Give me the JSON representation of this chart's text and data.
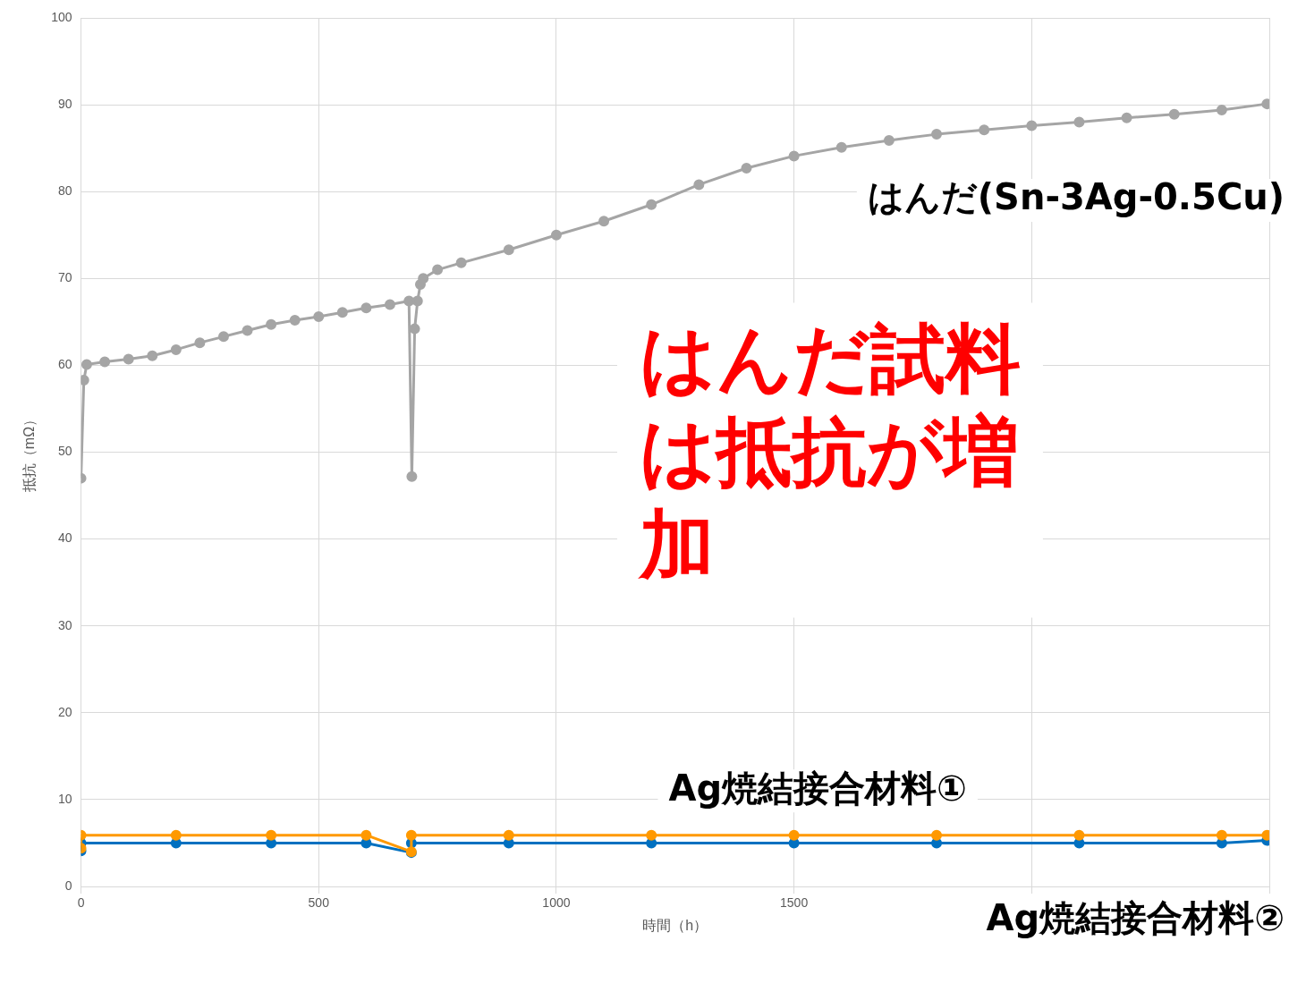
{
  "chart_data": {
    "type": "line",
    "xlabel": "時間（h）",
    "ylabel": "抵抗（mΩ）",
    "xlim": [
      0,
      2500
    ],
    "xticks": [
      0,
      500,
      1000,
      1500,
      {
        "value": 2000,
        "label": null
      },
      {
        "value": 2500,
        "label": null
      }
    ],
    "ylim": [
      0,
      100
    ],
    "yticks": [
      0,
      10,
      20,
      30,
      40,
      50,
      60,
      70,
      80,
      90,
      100
    ],
    "grid": true,
    "legend": false,
    "marker": "circle",
    "line_style": "solid",
    "annotations": [
      "はんだ試料は抵抗が増加"
    ],
    "series": [
      {
        "name": "はんだ(Sn-3Ag-0.5Cu)",
        "color": "#a5a5a5",
        "x": [
          0,
          6,
          12,
          50,
          100,
          150,
          200,
          250,
          300,
          350,
          400,
          450,
          500,
          550,
          600,
          650,
          690,
          696,
          702,
          708,
          714,
          720,
          750,
          800,
          900,
          1000,
          1100,
          1200,
          1300,
          1400,
          1500,
          1600,
          1700,
          1800,
          1900,
          2000,
          2100,
          2200,
          2300,
          2400,
          2495
        ],
        "values": [
          47,
          58.3,
          60.1,
          60.4,
          60.7,
          61.1,
          61.8,
          62.6,
          63.3,
          64,
          64.7,
          65.2,
          65.6,
          66.1,
          66.6,
          67,
          67.4,
          47.2,
          64.2,
          67.4,
          69.3,
          70,
          71,
          71.8,
          73.3,
          75,
          76.6,
          78.5,
          80.8,
          82.7,
          84.1,
          85.1,
          85.9,
          86.6,
          87.1,
          87.6,
          88,
          88.5,
          88.9,
          89.4,
          90.1
        ]
      },
      {
        "name": "Ag焼結接合材料①",
        "color": "#ff9900",
        "x": [
          0,
          0,
          200,
          400,
          600,
          695,
          695,
          900,
          1200,
          1500,
          1800,
          2100,
          2400,
          2495
        ],
        "values": [
          4.4,
          5.9,
          5.9,
          5.9,
          5.9,
          4,
          5.9,
          5.9,
          5.9,
          5.9,
          5.9,
          5.9,
          5.9,
          5.9
        ]
      },
      {
        "name": "Ag焼結接合材料②",
        "color": "#0070c0",
        "x": [
          0,
          0,
          200,
          400,
          600,
          695,
          695,
          900,
          1200,
          1500,
          1800,
          2100,
          2400,
          2495
        ],
        "values": [
          4.1,
          5,
          5,
          5,
          5,
          3.9,
          5,
          5,
          5,
          5,
          5,
          5,
          5,
          5.3
        ]
      }
    ]
  }
}
